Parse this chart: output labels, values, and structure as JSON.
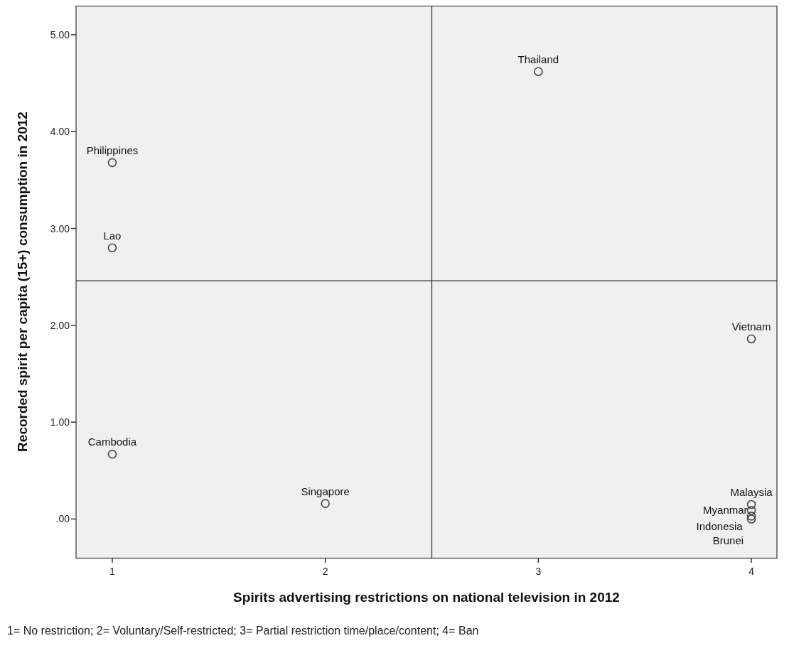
{
  "chart_data": {
    "type": "scatter",
    "xlabel": "Spirits advertising restrictions on national television in 2012",
    "ylabel": "Recorded spirit per capita (15+) consumption in 2012",
    "xlim": [
      0.83,
      4.12
    ],
    "xticks": [
      1,
      2,
      3,
      4
    ],
    "ylim": [
      -0.4,
      5.3
    ],
    "yticks": [
      {
        "value": 0,
        "label": ".00"
      },
      {
        "value": 1,
        "label": "1.00"
      },
      {
        "value": 2,
        "label": "2.00"
      },
      {
        "value": 3,
        "label": "3.00"
      },
      {
        "value": 4,
        "label": "4.00"
      },
      {
        "value": 5,
        "label": "5.00"
      }
    ],
    "grid": false,
    "marker": "circle",
    "series": [
      {
        "color": "#444444",
        "x": [
          3,
          1,
          1,
          1,
          2,
          4,
          4,
          4,
          4,
          4
        ],
        "values": [
          4.62,
          3.68,
          2.8,
          0.67,
          0.16,
          1.86,
          0.15,
          0.09,
          0.03,
          0.0
        ]
      }
    ],
    "ref_lines": [
      {
        "axis": "x",
        "value": 2.5
      },
      {
        "axis": "y",
        "value": 2.46
      }
    ],
    "annotations": [
      {
        "text": "Thailand",
        "x": 3,
        "y": 4.62
      },
      {
        "text": "Philippines",
        "x": 1,
        "y": 3.68
      },
      {
        "text": "Lao",
        "x": 1,
        "y": 2.8
      },
      {
        "text": "Cambodia",
        "x": 1,
        "y": 0.67
      },
      {
        "text": "Singapore",
        "x": 2,
        "y": 0.16
      },
      {
        "text": "Vietnam",
        "x": 4,
        "y": 1.86
      },
      {
        "text": "Malaysia",
        "x": 4,
        "y": 0.15
      },
      {
        "text": "Myanmar",
        "x": 4,
        "y": 0.09
      },
      {
        "text": "Indonesia",
        "x": 4,
        "y": 0.03
      },
      {
        "text": "Brunei",
        "x": 4,
        "y": 0.0
      },
      "1= No restriction; 2= Voluntary/Self-restricted; 3= Partial restriction time/place/content; 4= Ban"
    ]
  }
}
